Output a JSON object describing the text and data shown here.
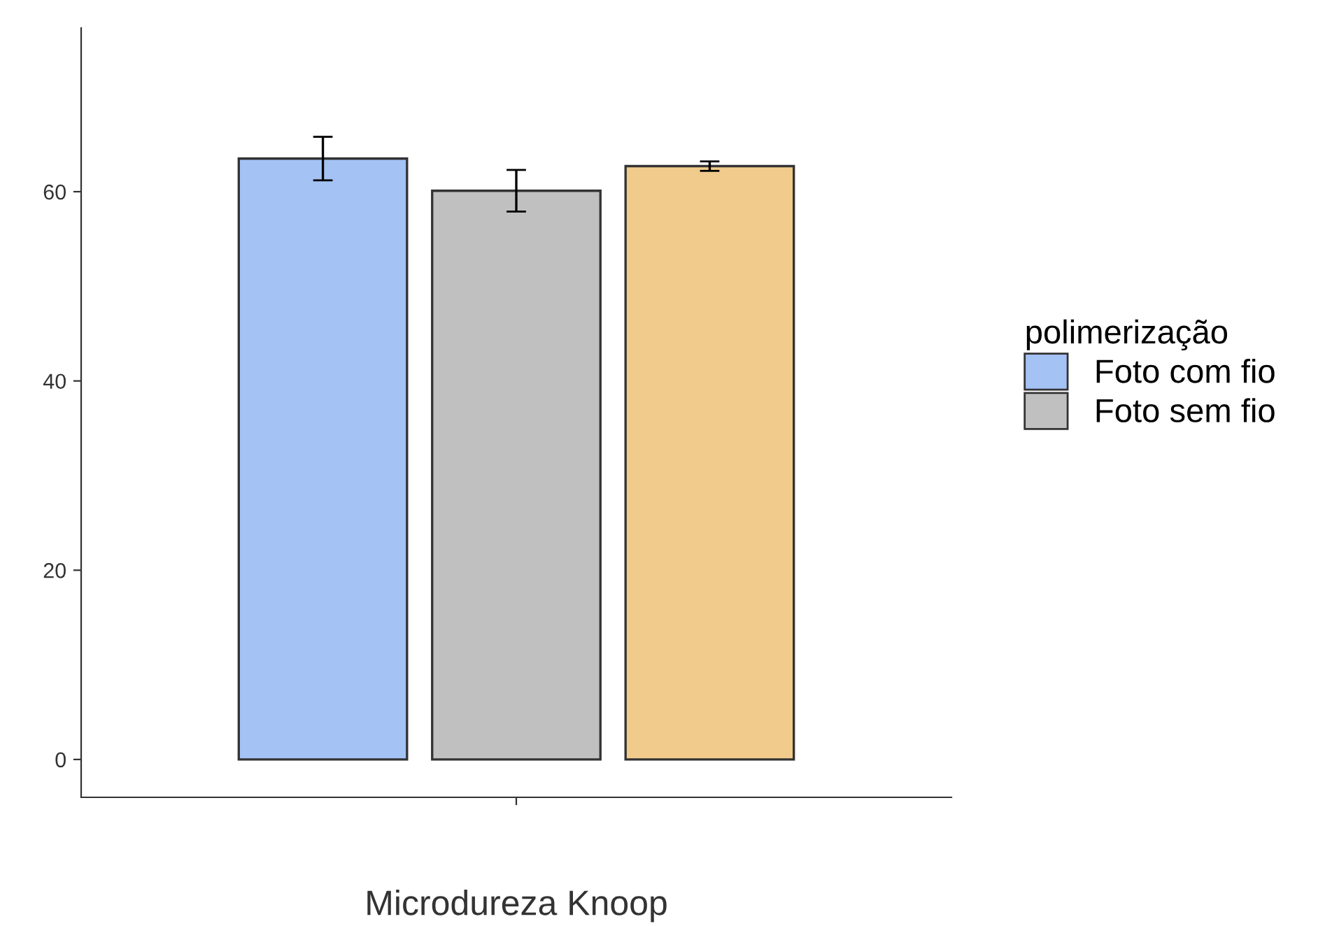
{
  "chart_data": {
    "type": "bar",
    "xlabel": "Microdureza Knoop",
    "legend_title": "polimerização",
    "categories": [
      null
    ],
    "series": [
      {
        "name": "Foto com fio",
        "color": "#a4c2f4",
        "values": [
          63.5
        ],
        "errors": [
          2.3
        ]
      },
      {
        "name": "Foto sem fio",
        "color": "#c0c0c0",
        "values": [
          60.1
        ],
        "errors": [
          2.2
        ]
      },
      {
        "color": "#f1cb8b",
        "values": [
          62.7
        ],
        "errors": [
          0.5
        ]
      }
    ],
    "ylim": [
      -4,
      77.3
    ],
    "yticks": [
      0,
      20,
      40,
      60
    ],
    "grid": false,
    "legend": "right"
  }
}
